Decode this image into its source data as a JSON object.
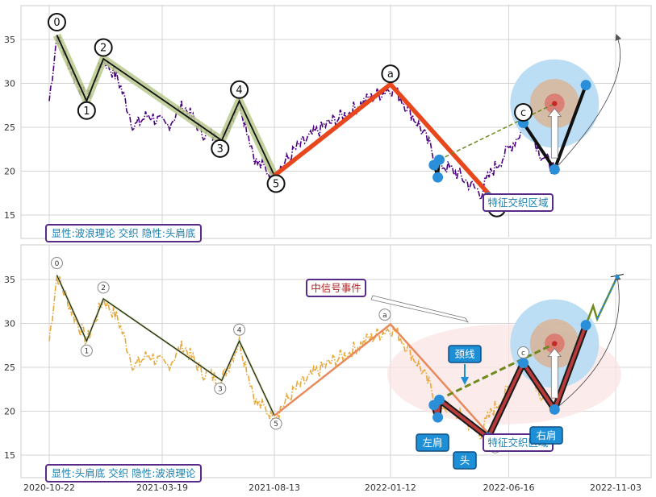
{
  "chart_data": [
    {
      "type": "line",
      "panel": "top",
      "x_ticks": [
        "2020-10-22",
        "2021-03-19",
        "2021-08-13",
        "2022-01-12",
        "2022-06-16",
        "2022-11-03"
      ],
      "y_ticks": [
        15,
        20,
        25,
        30,
        35
      ],
      "ylim": [
        12.5,
        39
      ],
      "grid": true,
      "price_series": {
        "color": "#4b0082",
        "style": "dash-dot",
        "anchors": [
          [
            "2020-10-22",
            28
          ],
          [
            "2020-11-01",
            35.5
          ],
          [
            "2020-11-20",
            31.5
          ],
          [
            "2020-12-10",
            28.0
          ],
          [
            "2021-01-01",
            32.8
          ],
          [
            "2021-01-20",
            30.5
          ],
          [
            "2021-02-10",
            25.0
          ],
          [
            "2021-03-01",
            26.5
          ],
          [
            "2021-03-25",
            25.0
          ],
          [
            "2021-04-15",
            27.5
          ],
          [
            "2021-05-10",
            24.5
          ],
          [
            "2021-06-05",
            23.5
          ],
          [
            "2021-06-28",
            28.0
          ],
          [
            "2021-07-20",
            21.0
          ],
          [
            "2021-08-13",
            19.5
          ],
          [
            "2021-09-10",
            22.5
          ],
          [
            "2021-10-15",
            25.0
          ],
          [
            "2021-11-15",
            26.5
          ],
          [
            "2021-12-10",
            28.0
          ],
          [
            "2022-01-12",
            29.5
          ],
          [
            "2022-01-25",
            28.5
          ],
          [
            "2022-02-20",
            25.0
          ],
          [
            "2022-03-15",
            21.0
          ],
          [
            "2022-04-05",
            20.0
          ],
          [
            "2022-05-10",
            17.5
          ],
          [
            "2022-05-25",
            20.0
          ],
          [
            "2022-06-16",
            22.5
          ],
          [
            "2022-07-10",
            25.5
          ],
          [
            "2022-07-28",
            22.0
          ],
          [
            "2022-08-15",
            20.2
          ]
        ]
      },
      "wave_labels": [
        "0",
        "1",
        "2",
        "3",
        "4",
        "5",
        "a",
        "b",
        "c"
      ],
      "waves": [
        {
          "label": "0",
          "date": "2020-11-01",
          "value": 35.5
        },
        {
          "label": "1",
          "date": "2020-12-10",
          "value": 28.0
        },
        {
          "label": "2",
          "date": "2021-01-01",
          "value": 32.8
        },
        {
          "label": "3",
          "date": "2021-06-05",
          "value": 23.5
        },
        {
          "label": "4",
          "date": "2021-06-28",
          "value": 28.0
        },
        {
          "label": "5",
          "date": "2021-08-13",
          "value": 19.5
        },
        {
          "label": "a",
          "date": "2022-01-12",
          "value": 29.9
        },
        {
          "label": "b",
          "date": "2022-05-25",
          "value": 17.0
        },
        {
          "label": "c",
          "date": "2022-07-05",
          "value": 25.5
        }
      ],
      "pattern_points": [
        {
          "date": "2022-03-10",
          "value": 20.7
        },
        {
          "date": "2022-03-15",
          "value": 19.3
        },
        {
          "date": "2022-03-17",
          "value": 21.3
        },
        {
          "date": "2022-05-20",
          "value": 17.0
        },
        {
          "date": "2022-07-05",
          "value": 25.5
        },
        {
          "date": "2022-08-15",
          "value": 20.2
        },
        {
          "date": "2022-09-25",
          "value": 29.8
        }
      ],
      "target_point": {
        "date": "2022-08-15",
        "value": 27.7
      },
      "projection_end": {
        "date": "2022-11-05",
        "value": 35.3
      },
      "annotations": {
        "feature_zone_label": "特征交织区域",
        "mode_label": "显性:波浪理论 交织 隐性:头肩底"
      }
    },
    {
      "type": "line",
      "panel": "bottom",
      "x_ticks": [
        "2020-10-22",
        "2021-03-19",
        "2021-08-13",
        "2022-01-12",
        "2022-06-16",
        "2022-11-03"
      ],
      "y_ticks": [
        15,
        20,
        25,
        30,
        35
      ],
      "ylim": [
        12.5,
        39
      ],
      "grid": true,
      "price_series": {
        "color": "#e8a93a",
        "style": "dash-dot"
      },
      "wave_labels": [
        "0",
        "1",
        "2",
        "3",
        "4",
        "5",
        "a",
        "b",
        "c"
      ],
      "pattern_labels": {
        "left_shoulder": "左肩",
        "head": "头",
        "right_shoulder": "右肩",
        "neckline": "颈线"
      },
      "annotations": {
        "signal_event": "中信号事件",
        "feature_zone_label": "特征交织区域",
        "mode_label": "显性:头肩底 交织 隐性:波浪理论"
      }
    }
  ]
}
